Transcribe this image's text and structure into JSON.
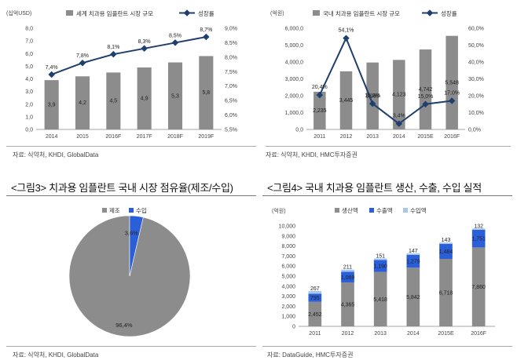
{
  "colors": {
    "bar": "#8c8c8c",
    "line": "#1f3f6e",
    "blue": "#2b5fd9",
    "lightblue": "#a7c7ef"
  },
  "panels": {
    "p1": {
      "source": "자료: 식약처, KHDI, GlobalData"
    },
    "p2": {
      "source": "자료: 식약처, KHDI, HMC투자증권"
    },
    "p3": {
      "title": "<그림3> 치과용 임플란트 국내 시장 점유율(제조/수입)",
      "source": "자료: 식약처, KHDI, GlobalData"
    },
    "p4": {
      "title": "<그림4> 국내 치과용 임플란트 생산, 수출, 수입 실적",
      "source": "자료: DataGuide, HMC투자증권"
    }
  },
  "chart_data": [
    {
      "type": "bar",
      "unit_left": "(십억USD)",
      "categories": [
        "2014",
        "2015",
        "2016F",
        "2017F",
        "2018F",
        "2019F"
      ],
      "series": [
        {
          "name": "세계 치과용 임플란트 시장 규모",
          "type": "bar",
          "axis": "left",
          "values": [
            3.9,
            4.2,
            4.5,
            4.9,
            5.3,
            5.8
          ],
          "labels": [
            "3,9",
            "4,2",
            "4,5",
            "4,9",
            "5,3",
            "5,8"
          ]
        },
        {
          "name": "성장률",
          "type": "line",
          "axis": "right",
          "values": [
            7.4,
            7.8,
            8.1,
            8.3,
            8.5,
            8.7
          ],
          "labels": [
            "7,4%",
            "7,8%",
            "8,1%",
            "8,3%",
            "8,5%",
            "8,7%"
          ]
        }
      ],
      "ylim": [
        0,
        8
      ],
      "y2lim": [
        5.5,
        9.0
      ],
      "yticks": [
        "0,0",
        "1,0",
        "2,0",
        "3,0",
        "4,0",
        "5,0",
        "6,0",
        "7,0",
        "8,0"
      ],
      "y2ticks": [
        "5,5%",
        "6,0%",
        "6,5%",
        "7,0%",
        "7,5%",
        "8,0%",
        "8,5%",
        "9,0%"
      ],
      "legend_position": "top"
    },
    {
      "type": "bar",
      "unit_left": "(억원)",
      "categories": [
        "2011",
        "2012",
        "2013",
        "2014",
        "2015E",
        "2016F"
      ],
      "series": [
        {
          "name": "국내 치과용 임플란트 시장 규모",
          "type": "bar",
          "axis": "left",
          "values": [
            2235,
            3445,
            3969,
            4123,
            4742,
            5548
          ],
          "labels": [
            "2,235",
            "3,445",
            "3,969",
            "4,123",
            "4,742",
            "5,548"
          ]
        },
        {
          "name": "성장률",
          "type": "line",
          "axis": "right",
          "values": [
            20.4,
            54.1,
            15.3,
            3.4,
            15.0,
            17.0
          ],
          "labels": [
            "20,4%",
            "54,1%",
            "15,3%",
            "3,4%",
            "15,0%",
            "17,0%"
          ]
        }
      ],
      "ylim": [
        0,
        6000
      ],
      "y2lim": [
        0,
        60
      ],
      "yticks": [
        "0,0",
        "1,000,0",
        "2,000,0",
        "3,000,0",
        "4,000,0",
        "5,000,0",
        "6,000,0"
      ],
      "y2ticks": [
        "0,0%",
        "10,0%",
        "20,0%",
        "30,0%",
        "40,0%",
        "50,0%",
        "60,0%"
      ],
      "legend_position": "top"
    },
    {
      "type": "pie",
      "slices": [
        {
          "name": "제조",
          "value": 96.4,
          "label": "96,4%"
        },
        {
          "name": "수입",
          "value": 3.6,
          "label": "3,6%"
        }
      ],
      "legend_position": "top"
    },
    {
      "type": "bar",
      "stacked": true,
      "unit_left": "(억원)",
      "categories": [
        "2011",
        "2012",
        "2013",
        "2014",
        "2015E",
        "2016F"
      ],
      "series": [
        {
          "name": "생산액",
          "values": [
            2452,
            4365,
            5418,
            5842,
            6718,
            7860
          ],
          "labels": [
            "2,452",
            "4,365",
            "5,418",
            "5,842",
            "6,718",
            "7,860"
          ]
        },
        {
          "name": "수출액",
          "values": [
            795,
            1069,
            1190,
            1279,
            1484,
            1751
          ],
          "labels": [
            "795",
            "1,069",
            "1,190",
            "1,279",
            "1,484",
            "1,751"
          ]
        },
        {
          "name": "수입액",
          "values": [
            267,
            211,
            151,
            147,
            143,
            132
          ],
          "labels": [
            "267",
            "211",
            "151",
            "147",
            "143",
            "132"
          ]
        }
      ],
      "ylim": [
        0,
        10000
      ],
      "yticks": [
        "0",
        "1,000",
        "2,000",
        "3,000",
        "4,000",
        "5,000",
        "6,000",
        "7,000",
        "8,000",
        "9,000",
        "10,000"
      ],
      "legend_position": "top"
    }
  ]
}
